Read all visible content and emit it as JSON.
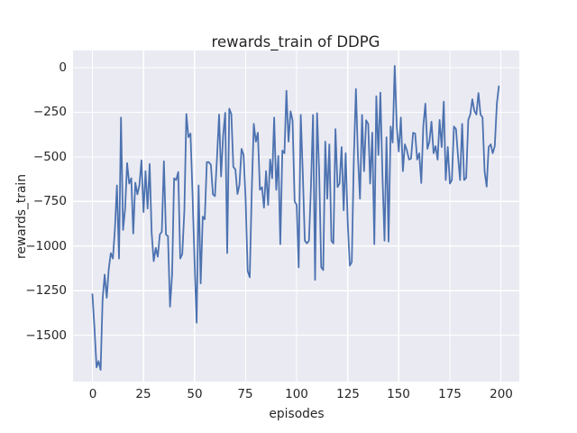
{
  "chart_data": {
    "type": "line",
    "title": "rewards_train of DDPG",
    "xlabel": "episodes",
    "ylabel": "rewards_train",
    "grid": true,
    "legend": null,
    "axes_background_color": "#EAEAF2",
    "grid_color": "#FFFFFF",
    "line_color": "#4C72B0",
    "text_color": "#262626",
    "xlim": [
      -9.5,
      209
    ],
    "ylim": [
      -1760,
      96
    ],
    "x_tick_values": [
      0,
      25,
      50,
      75,
      100,
      125,
      150,
      175,
      200
    ],
    "x_tick_labels": [
      "0",
      "25",
      "50",
      "75",
      "100",
      "125",
      "150",
      "175",
      "200"
    ],
    "y_tick_values": [
      0,
      -250,
      -500,
      -750,
      -1000,
      -1250,
      -1500
    ],
    "y_tick_labels": [
      "0",
      "−250",
      "−500",
      "−750",
      "−1000",
      "−1250",
      "−1500"
    ],
    "series": [
      {
        "name": "rewards_train",
        "x_start": 0,
        "x_step": 1,
        "values": [
          -1270,
          -1460,
          -1680,
          -1645,
          -1695,
          -1300,
          -1160,
          -1290,
          -1130,
          -1040,
          -1070,
          -910,
          -660,
          -1070,
          -280,
          -910,
          -790,
          -535,
          -650,
          -620,
          -930,
          -645,
          -710,
          -660,
          -520,
          -810,
          -580,
          -790,
          -540,
          -925,
          -1085,
          -1010,
          -1060,
          -935,
          -920,
          -525,
          -935,
          -945,
          -1340,
          -1160,
          -620,
          -630,
          -585,
          -1070,
          -1045,
          -800,
          -260,
          -390,
          -370,
          -700,
          -1090,
          -1430,
          -660,
          -1210,
          -835,
          -850,
          -530,
          -530,
          -545,
          -710,
          -720,
          -505,
          -263,
          -610,
          -380,
          -253,
          -1040,
          -230,
          -260,
          -556,
          -571,
          -708,
          -657,
          -455,
          -490,
          -733,
          -1140,
          -1175,
          -700,
          -315,
          -415,
          -365,
          -685,
          -670,
          -785,
          -580,
          -770,
          -515,
          -620,
          -280,
          -685,
          -495,
          -990,
          -465,
          -480,
          -130,
          -415,
          -245,
          -295,
          -750,
          -770,
          -1120,
          -265,
          -600,
          -970,
          -985,
          -970,
          -670,
          -265,
          -1190,
          -255,
          -580,
          -1120,
          -1135,
          -415,
          -735,
          -430,
          -970,
          -985,
          -345,
          -670,
          -650,
          -445,
          -800,
          -480,
          -870,
          -1110,
          -1090,
          -500,
          -120,
          -495,
          -735,
          -265,
          -580,
          -295,
          -315,
          -650,
          -365,
          -990,
          -160,
          -490,
          -140,
          -600,
          -970,
          -390,
          -975,
          -330,
          -420,
          10,
          -330,
          -470,
          -280,
          -580,
          -430,
          -465,
          -515,
          -510,
          -365,
          -370,
          -515,
          -480,
          -647,
          -330,
          -202,
          -455,
          -415,
          -303,
          -480,
          -440,
          -516,
          -293,
          -445,
          -190,
          -630,
          -445,
          -650,
          -630,
          -330,
          -345,
          -495,
          -630,
          -315,
          -630,
          -617,
          -293,
          -263,
          -177,
          -243,
          -263,
          -142,
          -263,
          -278,
          -581,
          -667,
          -445,
          -430,
          -480,
          -440,
          -202,
          -105
        ]
      }
    ]
  }
}
